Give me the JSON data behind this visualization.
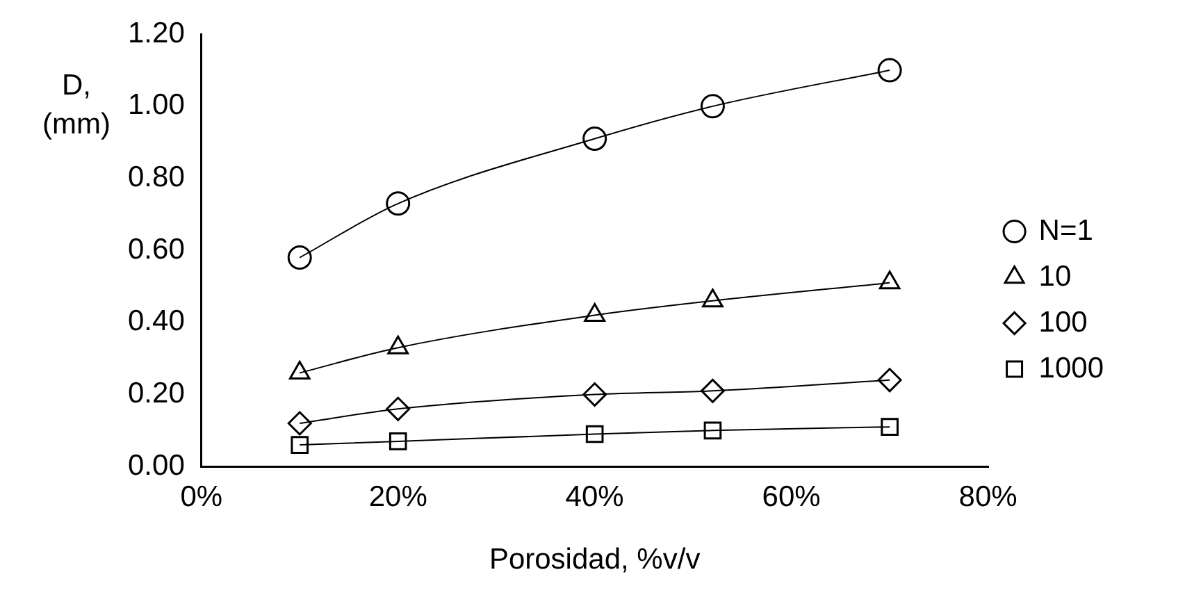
{
  "chart_data": {
    "type": "line",
    "xlabel": "Porosidad, %v/v",
    "ylabel": "D,\n(mm)",
    "x": [
      10,
      20,
      40,
      52,
      70
    ],
    "series": [
      {
        "name": "N=1",
        "color": "#000000",
        "marker": "circle",
        "values": [
          0.58,
          0.73,
          0.91,
          1.0,
          1.1
        ]
      },
      {
        "name": "10",
        "color": "#000000",
        "marker": "triangle",
        "values": [
          0.26,
          0.33,
          0.42,
          0.46,
          0.51
        ]
      },
      {
        "name": "100",
        "color": "#000000",
        "marker": "diamond",
        "values": [
          0.12,
          0.16,
          0.2,
          0.21,
          0.24
        ]
      },
      {
        "name": "1000",
        "color": "#000000",
        "marker": "square",
        "values": [
          0.06,
          0.07,
          0.09,
          0.1,
          0.11
        ]
      }
    ],
    "xlim": [
      0,
      80
    ],
    "xticks": [
      {
        "value": 0,
        "label": "0%"
      },
      {
        "value": 20,
        "label": "20%"
      },
      {
        "value": 40,
        "label": "40%"
      },
      {
        "value": 60,
        "label": "60%"
      },
      {
        "value": 80,
        "label": "80%"
      }
    ],
    "ylim": [
      0,
      1.2
    ],
    "yticks": [
      {
        "value": 0,
        "label": "0.00"
      },
      {
        "value": 0.2,
        "label": "0.20"
      },
      {
        "value": 0.4,
        "label": "0.40"
      },
      {
        "value": 0.6,
        "label": "0.60"
      },
      {
        "value": 0.8,
        "label": "0.80"
      },
      {
        "value": 1.0,
        "label": "1.00"
      },
      {
        "value": 1.2,
        "label": "1.20"
      }
    ],
    "grid": false,
    "legend": "right",
    "line_style": "solid"
  }
}
